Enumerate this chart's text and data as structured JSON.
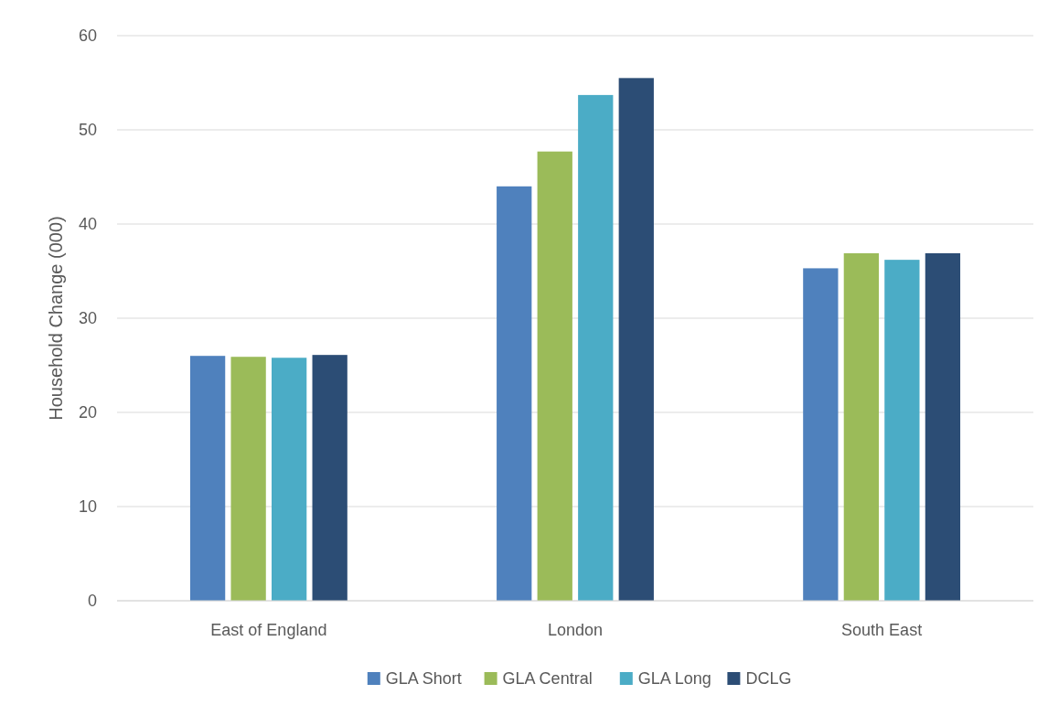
{
  "chart_data": {
    "type": "bar",
    "ylabel": "Household Change (000)",
    "categories": [
      "East of England",
      "London",
      "South East"
    ],
    "series": [
      {
        "name": "GLA Short",
        "color": "#4f81bd",
        "values": [
          26.0,
          44.0,
          35.3
        ]
      },
      {
        "name": "GLA Central",
        "color": "#9bbb59",
        "values": [
          25.9,
          47.7,
          36.9
        ]
      },
      {
        "name": "GLA Long",
        "color": "#4bacc6",
        "values": [
          25.8,
          53.7,
          36.2
        ]
      },
      {
        "name": "DCLG",
        "color": "#2c4d75",
        "values": [
          26.1,
          55.5,
          36.9
        ]
      }
    ],
    "ylim": [
      0,
      60
    ],
    "yticks": [
      0,
      10,
      20,
      30,
      40,
      50,
      60
    ],
    "grid": "y",
    "legend": "bottom"
  }
}
